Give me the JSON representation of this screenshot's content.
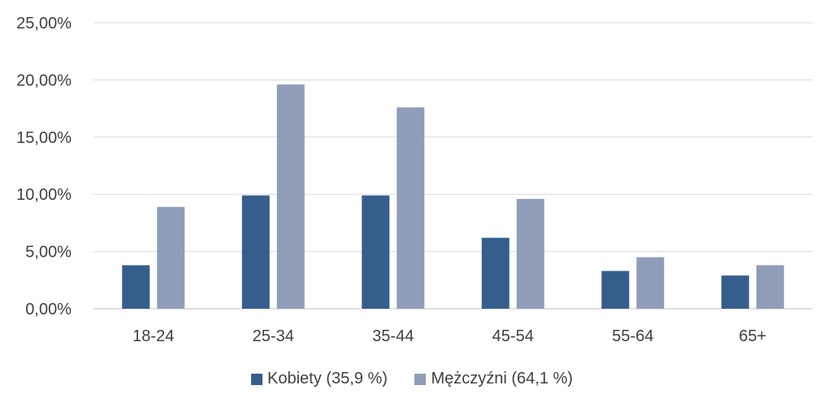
{
  "chart_data": {
    "type": "bar",
    "categories": [
      "18-24",
      "25-34",
      "35-44",
      "45-54",
      "55-64",
      "65+"
    ],
    "series": [
      {
        "name": "Kobiety (35,9 %)",
        "values": [
          3.8,
          9.9,
          9.9,
          6.2,
          3.3,
          2.9
        ],
        "color": "#355e8c"
      },
      {
        "name": "Mężczyźni (64,1 %)",
        "values": [
          8.9,
          19.6,
          17.6,
          9.6,
          4.5,
          3.8
        ],
        "color": "#8f9db9"
      }
    ],
    "y_ticks": [
      "0,00%",
      "5,00%",
      "10,00%",
      "15,00%",
      "20,00%",
      "25,00%"
    ],
    "ylim": [
      0,
      25
    ],
    "grid": true,
    "legend_position": "bottom"
  }
}
